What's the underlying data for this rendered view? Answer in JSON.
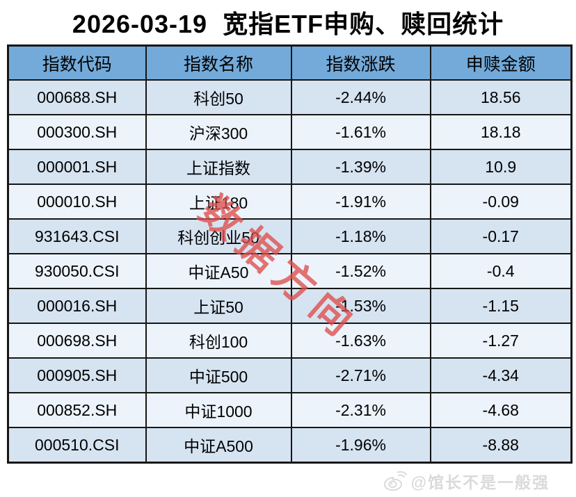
{
  "title": "2026-03-19  宽指ETF申购、赎回统计",
  "table": {
    "headers": [
      "指数代码",
      "指数名称",
      "指数涨跌",
      "申赎金额"
    ],
    "rows": [
      [
        "000688.SH",
        "科创50",
        "-2.44%",
        "18.56"
      ],
      [
        "000300.SH",
        "沪深300",
        "-1.61%",
        "18.18"
      ],
      [
        "000001.SH",
        "上证指数",
        "-1.39%",
        "10.9"
      ],
      [
        "000010.SH",
        "上证180",
        "-1.91%",
        "-0.09"
      ],
      [
        "931643.CSI",
        "科创创业50",
        "-1.18%",
        "-0.17"
      ],
      [
        "930050.CSI",
        "中证A50",
        "-1.52%",
        "-0.4"
      ],
      [
        "000016.SH",
        "上证50",
        "-1.53%",
        "-1.15"
      ],
      [
        "000698.SH",
        "科创100",
        "-1.63%",
        "-1.27"
      ],
      [
        "000905.SH",
        "中证500",
        "-2.71%",
        "-4.34"
      ],
      [
        "000852.SH",
        "中证1000",
        "-2.31%",
        "-4.68"
      ],
      [
        "000510.CSI",
        "中证A500",
        "-1.96%",
        "-8.88"
      ]
    ]
  },
  "watermark": {
    "text": "数据方向",
    "color": "#de4d4a"
  },
  "credit": {
    "icon": "weibo-icon",
    "text": "@馆长不是一般强"
  },
  "colors": {
    "header_bg": "#73aad9",
    "row_odd": "#d6e3f1",
    "row_even": "#ecf3fb",
    "border": "#161616",
    "watermark_red": "#de4d4a"
  }
}
